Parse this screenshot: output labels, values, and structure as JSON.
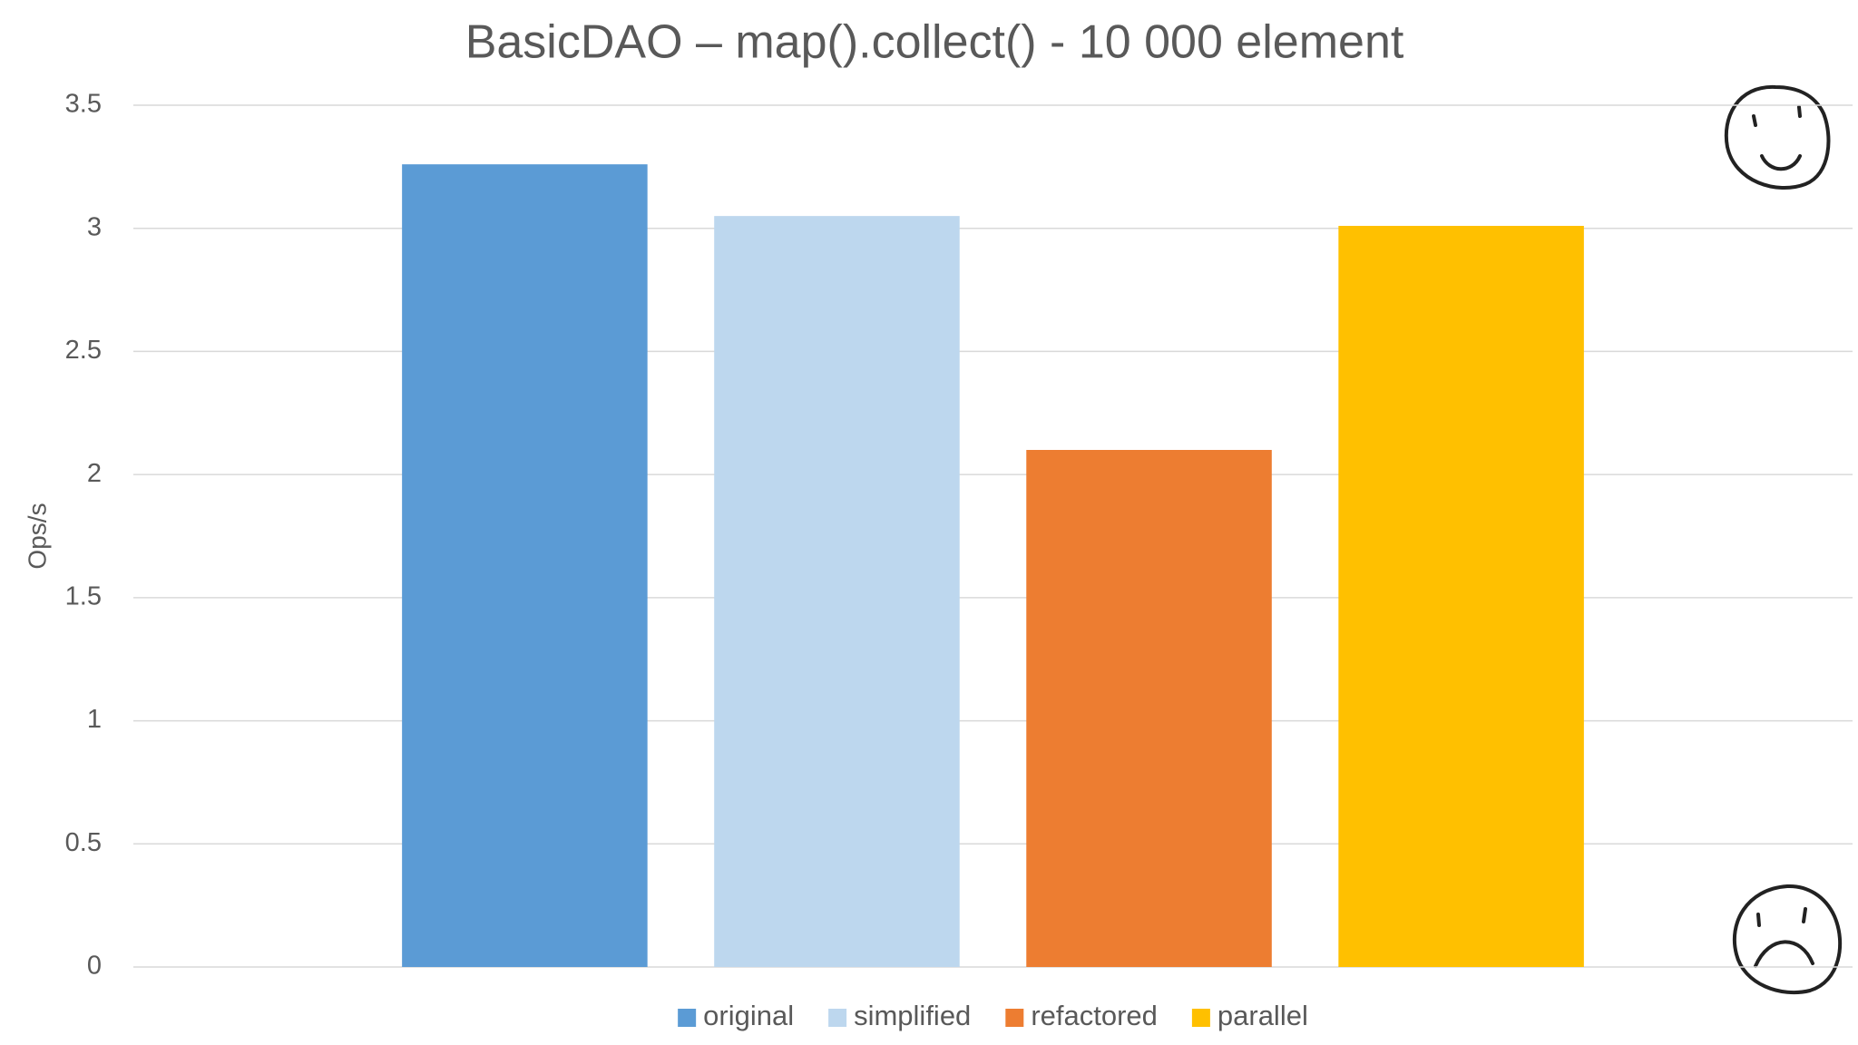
{
  "chart_data": {
    "type": "bar",
    "title": "BasicDAO – map().collect() - 10 000 element",
    "y_label": "Ops/s",
    "categories": [
      null
    ],
    "series": [
      {
        "name": "original",
        "color": "#5b9bd5",
        "values": [
          3.26
        ]
      },
      {
        "name": "simplified",
        "color": "#bdd7ee",
        "values": [
          3.05
        ]
      },
      {
        "name": "refactored",
        "color": "#ed7d31",
        "values": [
          2.1
        ]
      },
      {
        "name": "parallel",
        "color": "#ffc000",
        "values": [
          3.01
        ]
      }
    ],
    "ylim": [
      0,
      3.5
    ],
    "yticks": [
      0,
      0.5,
      1,
      1.5,
      2,
      2.5,
      3,
      3.5
    ],
    "grid": true,
    "legend": "bottom"
  }
}
